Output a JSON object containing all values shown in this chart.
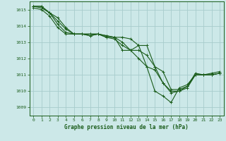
{
  "bg_color": "#cce8e8",
  "plot_bg_color": "#cce8e8",
  "grid_color": "#a8cccc",
  "line_color": "#1a5c1a",
  "title": "Graphe pression niveau de la mer (hPa)",
  "xlim": [
    -0.5,
    23.5
  ],
  "ylim": [
    1008.5,
    1015.5
  ],
  "yticks": [
    1009,
    1010,
    1011,
    1012,
    1013,
    1014,
    1015
  ],
  "xticks": [
    0,
    1,
    2,
    3,
    4,
    5,
    6,
    7,
    8,
    9,
    10,
    11,
    12,
    13,
    14,
    15,
    16,
    17,
    18,
    19,
    20,
    21,
    22,
    23
  ],
  "series": [
    [
      1015.2,
      1015.2,
      1014.8,
      1014.5,
      1013.9,
      1013.5,
      1013.5,
      1013.4,
      1013.5,
      1013.3,
      1013.2,
      1012.8,
      1012.5,
      1012.8,
      1011.5,
      1010.0,
      1009.7,
      1009.3,
      1010.2,
      1010.4,
      1011.0,
      1011.0,
      1011.1,
      1011.2
    ],
    [
      1015.2,
      1015.2,
      1014.8,
      1014.3,
      1013.8,
      1013.5,
      1013.5,
      1013.4,
      1013.5,
      1013.3,
      1013.3,
      1013.3,
      1013.2,
      1012.8,
      1012.8,
      1011.5,
      1011.2,
      1010.1,
      1010.1,
      1010.3,
      1011.0,
      1011.0,
      1011.0,
      1011.1
    ],
    [
      1015.2,
      1015.1,
      1014.8,
      1014.1,
      1013.6,
      1013.5,
      1013.5,
      1013.5,
      1013.5,
      1013.4,
      1013.3,
      1012.5,
      1012.5,
      1012.5,
      1012.2,
      1011.5,
      1010.5,
      1009.9,
      1010.0,
      1010.2,
      1011.0,
      1011.0,
      1011.0,
      1011.1
    ],
    [
      1015.1,
      1015.0,
      1014.6,
      1013.9,
      1013.5,
      1013.5,
      1013.5,
      1013.5,
      1013.5,
      1013.4,
      1013.3,
      1013.0,
      1012.5,
      1012.0,
      1011.5,
      1011.3,
      1010.5,
      1010.0,
      1010.0,
      1010.3,
      1011.1,
      1011.0,
      1011.0,
      1011.1
    ]
  ]
}
